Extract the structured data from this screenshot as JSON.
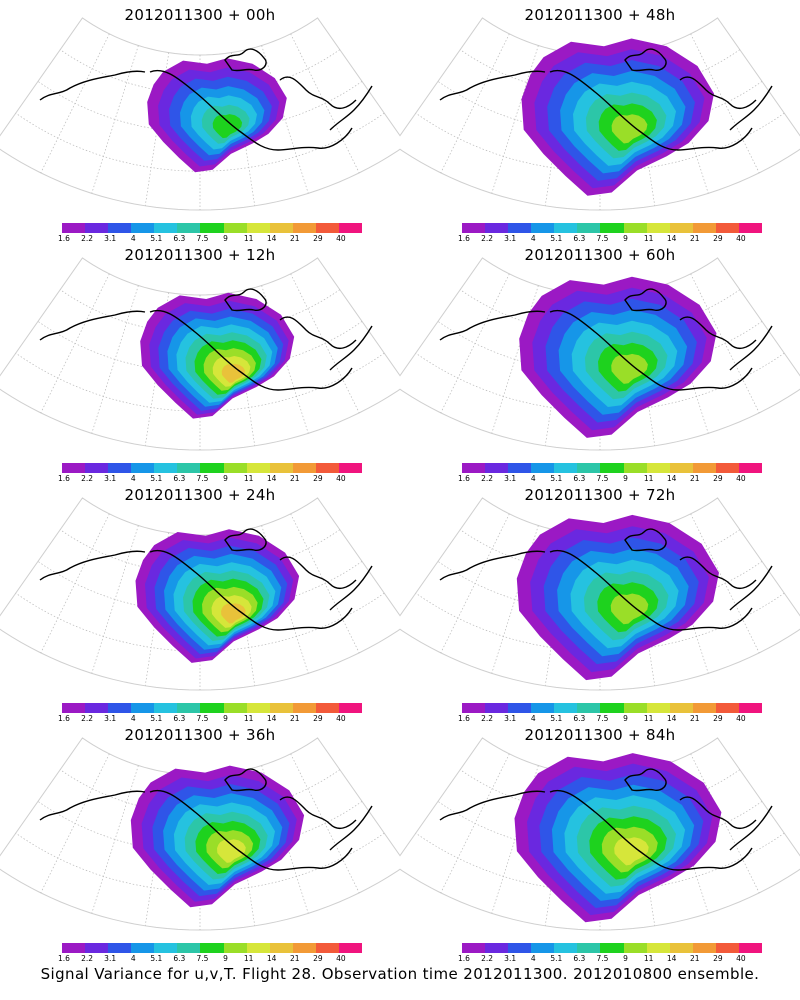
{
  "caption": "Signal Variance for u,v,T. Flight 28. Observation time 2012011300. 2012010800 ensemble.",
  "colorbar": {
    "labels": [
      "1.6",
      "2.2",
      "3.1",
      "4",
      "5.1",
      "6.3",
      "7.5",
      "9",
      "11",
      "14",
      "21",
      "29",
      "40"
    ],
    "colors": [
      "#9b19c4",
      "#6a28e0",
      "#2f55e8",
      "#1696e8",
      "#25c2e0",
      "#2cc6a8",
      "#1ed21e",
      "#9ade28",
      "#d6e63a",
      "#e9c23a",
      "#f29a36",
      "#f35a3a",
      "#f0147e"
    ]
  },
  "panels": [
    {
      "title": "2012011300 + 00h",
      "col": 0,
      "row": 0,
      "max_level": 7,
      "spread": 0.45
    },
    {
      "title": "2012011300 + 48h",
      "col": 1,
      "row": 0,
      "max_level": 8,
      "spread": 1.0
    },
    {
      "title": "2012011300 + 12h",
      "col": 0,
      "row": 1,
      "max_level": 10,
      "spread": 0.6
    },
    {
      "title": "2012011300 + 60h",
      "col": 1,
      "row": 1,
      "max_level": 8,
      "spread": 1.05
    },
    {
      "title": "2012011300 + 24h",
      "col": 0,
      "row": 2,
      "max_level": 10,
      "spread": 0.7
    },
    {
      "title": "2012011300 + 72h",
      "col": 1,
      "row": 2,
      "max_level": 8,
      "spread": 1.1
    },
    {
      "title": "2012011300 + 36h",
      "col": 0,
      "row": 3,
      "max_level": 9,
      "spread": 0.8
    },
    {
      "title": "2012011300 + 84h",
      "col": 1,
      "row": 3,
      "max_level": 9,
      "spread": 1.15
    }
  ]
}
